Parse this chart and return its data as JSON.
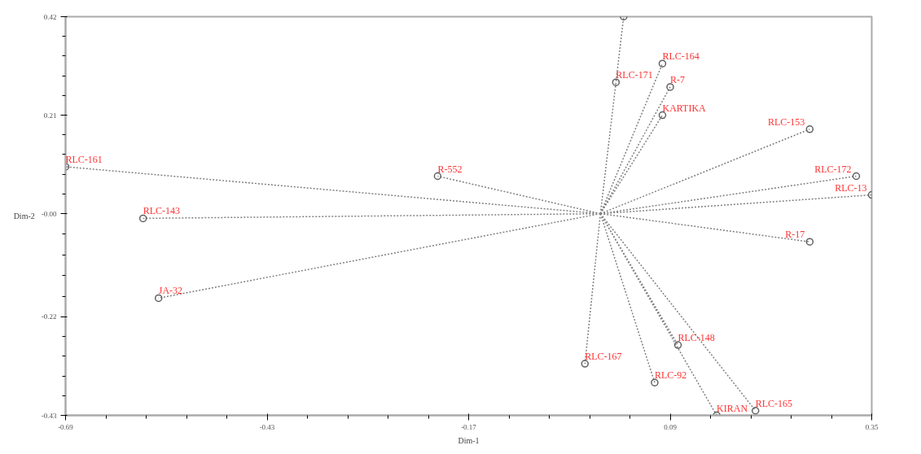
{
  "chart_data": {
    "type": "scatter",
    "xlabel": "Dim-1",
    "ylabel": "Dim-2",
    "xlim": [
      -0.69,
      0.35
    ],
    "ylim": [
      -0.43,
      0.42
    ],
    "xticks": [
      -0.69,
      -0.43,
      -0.17,
      0.09,
      0.35
    ],
    "yticks": [
      -0.43,
      -0.22,
      {
        "value": 0,
        "label": "-0.00"
      },
      0.21,
      0.42
    ],
    "grid": false,
    "series": [
      {
        "type": "line",
        "line_style": "dotted",
        "marker": "none",
        "color": "#808080",
        "x": [
          0,
          -0.69,
          null,
          0,
          -0.59,
          null,
          0,
          -0.57,
          null,
          0,
          -0.21,
          null,
          0,
          0.03,
          null,
          0,
          0.02,
          null,
          0,
          0.08,
          null,
          0,
          0.09,
          null,
          0,
          0.27,
          null,
          0,
          0.33,
          null,
          0,
          0.35,
          null,
          0,
          0.1,
          null,
          0,
          -0.02,
          null,
          0,
          0.07,
          null,
          0,
          0.15,
          null,
          0,
          0.2
        ],
        "values": [
          0,
          0.1,
          null,
          0,
          -0.01,
          null,
          0,
          -0.18,
          null,
          0,
          0.08,
          null,
          0,
          0.42,
          null,
          0,
          0.28,
          null,
          0,
          0.32,
          null,
          0,
          0.27,
          null,
          0,
          0.18,
          null,
          0,
          0.08,
          null,
          0,
          0.04,
          null,
          0,
          -0.28,
          null,
          0,
          -0.32,
          null,
          0,
          -0.36,
          null,
          0,
          -0.43,
          null,
          0,
          -0.42
        ]
      },
      {
        "type": "line",
        "line_style": "dotted",
        "marker": "none",
        "color": "#808080",
        "x": [
          0,
          0.08,
          null,
          0,
          0.27
        ],
        "values": [
          0,
          0.21,
          null,
          0,
          -0.06
        ]
      },
      {
        "marker": "circle",
        "color": "#606060",
        "x": [
          -0.69,
          -0.59,
          -0.57,
          -0.21,
          0.03,
          0.02,
          0.08,
          0.09,
          0.08,
          0.27,
          0.33,
          0.35,
          0.27,
          0.1,
          -0.02,
          0.07,
          0.15,
          0.2
        ],
        "values": [
          0.1,
          -0.01,
          -0.18,
          0.08,
          0.42,
          0.28,
          0.32,
          0.27,
          0.21,
          0.18,
          0.08,
          0.04,
          -0.06,
          -0.28,
          -0.32,
          -0.36,
          -0.43,
          -0.42
        ]
      }
    ],
    "annotations": [
      {
        "text": "RLC-161",
        "x": -0.69,
        "y": 0.1
      },
      {
        "text": "RLC-143",
        "x": -0.59,
        "y": -0.01
      },
      {
        "text": "JA-32",
        "x": -0.57,
        "y": -0.18
      },
      {
        "text": "R-552",
        "x": -0.21,
        "y": 0.08
      },
      {
        "text": "RLC-171",
        "x": 0.02,
        "y": 0.28
      },
      {
        "text": "RLC-164",
        "x": 0.08,
        "y": 0.32
      },
      {
        "text": "R-7",
        "x": 0.09,
        "y": 0.27
      },
      {
        "text": "KARTIKA",
        "x": 0.08,
        "y": 0.21
      },
      {
        "text": "RLC-153",
        "x": 0.27,
        "y": 0.18
      },
      {
        "text": "RLC-172",
        "x": 0.33,
        "y": 0.08
      },
      {
        "text": "RLC-13",
        "x": 0.35,
        "y": 0.04
      },
      {
        "text": "R-17",
        "x": 0.27,
        "y": -0.06
      },
      {
        "text": "RLC-148",
        "x": 0.1,
        "y": -0.28
      },
      {
        "text": "RLC-167",
        "x": -0.02,
        "y": -0.32
      },
      {
        "text": "RLC-92",
        "x": 0.07,
        "y": -0.36
      },
      {
        "text": "KIRAN",
        "x": 0.15,
        "y": -0.43
      },
      {
        "text": "RLC-165",
        "x": 0.2,
        "y": -0.42
      }
    ]
  }
}
